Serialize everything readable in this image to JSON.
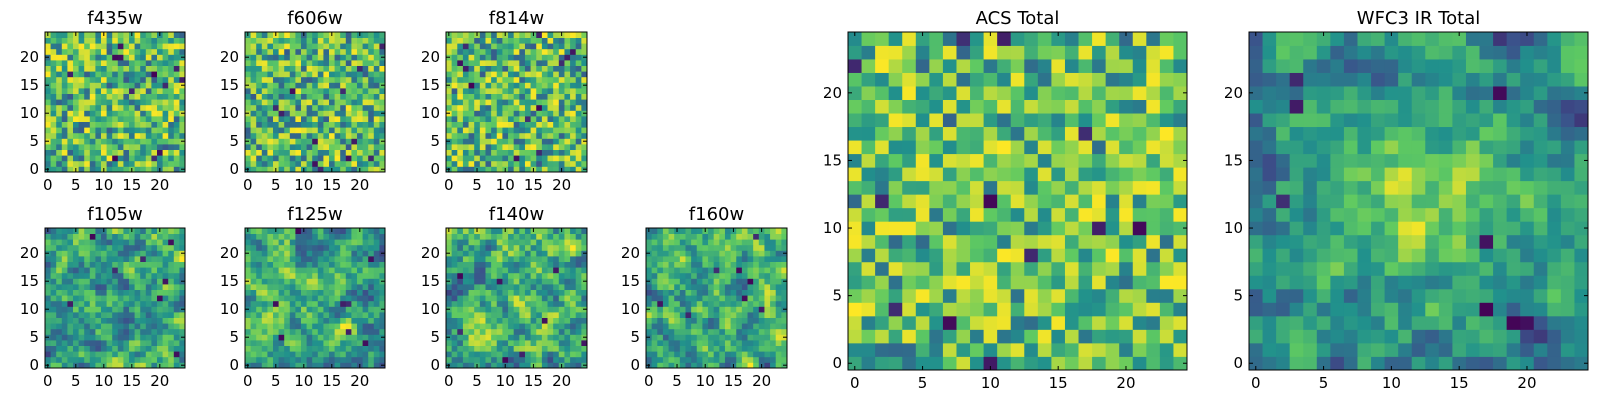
{
  "figure": {
    "colormap": "viridis",
    "colormap_stops": [
      "#440154",
      "#3b528b",
      "#21918c",
      "#5ec962",
      "#fde725"
    ]
  },
  "chart_data": [
    {
      "type": "heatmap",
      "title": "f435w",
      "grid": [
        25,
        25
      ],
      "xlim": [
        -0.5,
        24.5
      ],
      "ylim": [
        -0.5,
        24.5
      ],
      "xticks": [
        0,
        5,
        10,
        15,
        20
      ],
      "yticks": [
        0,
        5,
        10,
        15,
        20
      ],
      "texture": "noise",
      "seed": 11
    },
    {
      "type": "heatmap",
      "title": "f606w",
      "grid": [
        25,
        25
      ],
      "xlim": [
        -0.5,
        24.5
      ],
      "ylim": [
        -0.5,
        24.5
      ],
      "xticks": [
        0,
        5,
        10,
        15,
        20
      ],
      "yticks": [
        0,
        5,
        10,
        15,
        20
      ],
      "texture": "noise",
      "seed": 23
    },
    {
      "type": "heatmap",
      "title": "f814w",
      "grid": [
        25,
        25
      ],
      "xlim": [
        -0.5,
        24.5
      ],
      "ylim": [
        -0.5,
        24.5
      ],
      "xticks": [
        0,
        5,
        10,
        15,
        20
      ],
      "yticks": [
        0,
        5,
        10,
        15,
        20
      ],
      "texture": "noise",
      "seed": 37
    },
    {
      "type": "heatmap",
      "title": "f105w",
      "grid": [
        25,
        25
      ],
      "xlim": [
        -0.5,
        24.5
      ],
      "ylim": [
        -0.5,
        24.5
      ],
      "xticks": [
        0,
        5,
        10,
        15,
        20
      ],
      "yticks": [
        0,
        5,
        10,
        15,
        20
      ],
      "texture": "smooth",
      "seed": 41
    },
    {
      "type": "heatmap",
      "title": "f125w",
      "grid": [
        25,
        25
      ],
      "xlim": [
        -0.5,
        24.5
      ],
      "ylim": [
        -0.5,
        24.5
      ],
      "xticks": [
        0,
        5,
        10,
        15,
        20
      ],
      "yticks": [
        0,
        5,
        10,
        15,
        20
      ],
      "texture": "smooth",
      "seed": 53
    },
    {
      "type": "heatmap",
      "title": "f140w",
      "grid": [
        25,
        25
      ],
      "xlim": [
        -0.5,
        24.5
      ],
      "ylim": [
        -0.5,
        24.5
      ],
      "xticks": [
        0,
        5,
        10,
        15,
        20
      ],
      "yticks": [
        0,
        5,
        10,
        15,
        20
      ],
      "texture": "smooth",
      "seed": 67
    },
    {
      "type": "heatmap",
      "title": "f160w",
      "grid": [
        25,
        25
      ],
      "xlim": [
        -0.5,
        24.5
      ],
      "ylim": [
        -0.5,
        24.5
      ],
      "xticks": [
        0,
        5,
        10,
        15,
        20
      ],
      "yticks": [
        0,
        5,
        10,
        15,
        20
      ],
      "texture": "smooth",
      "seed": 79
    },
    {
      "type": "heatmap",
      "title": "ACS Total",
      "grid": [
        25,
        25
      ],
      "xlim": [
        -0.5,
        24.5
      ],
      "ylim": [
        -0.5,
        24.5
      ],
      "xticks": [
        0,
        5,
        10,
        15,
        20
      ],
      "yticks": [
        0,
        5,
        10,
        15,
        20
      ],
      "texture": "noise-bright",
      "seed": 97
    },
    {
      "type": "heatmap",
      "title": "WFC3 IR Total",
      "grid": [
        25,
        25
      ],
      "xlim": [
        -0.5,
        24.5
      ],
      "ylim": [
        -0.5,
        24.5
      ],
      "xticks": [
        0,
        5,
        10,
        15,
        20
      ],
      "yticks": [
        0,
        5,
        10,
        15,
        20
      ],
      "texture": "smooth-center",
      "seed": 113
    }
  ]
}
